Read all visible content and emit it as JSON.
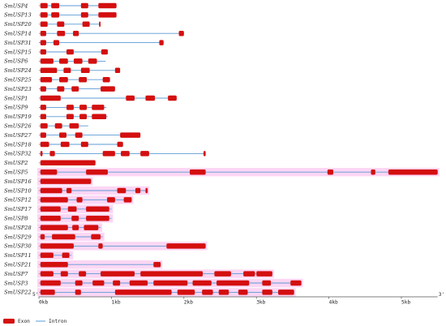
{
  "colors": {
    "exon": "#d40f0f",
    "intron": "#5b9bd5",
    "highlight": "#fcd6f4",
    "axis": "#555555",
    "label": "#222222"
  },
  "axis": {
    "left_label": "5'",
    "right_label": "3'",
    "min_kb": 0,
    "max_kb": 5.5,
    "ticks": [
      {
        "kb": 0,
        "label": "0kb"
      },
      {
        "kb": 1,
        "label": "1kb"
      },
      {
        "kb": 2,
        "label": "2kb"
      },
      {
        "kb": 3,
        "label": "3kb"
      },
      {
        "kb": 4,
        "label": "4kb"
      },
      {
        "kb": 5,
        "label": "5kb"
      }
    ]
  },
  "legend": [
    {
      "kind": "exon",
      "label": "Exon"
    },
    {
      "kind": "intron",
      "label": "Intron"
    }
  ],
  "chart_data": {
    "type": "gene_structure",
    "units": "kb",
    "genes": [
      {
        "name": "SmUSP4",
        "length": 1.07,
        "exons": [
          [
            0.02,
            0.12
          ],
          [
            0.17,
            0.28
          ],
          [
            0.58,
            0.68
          ],
          [
            0.82,
            1.07
          ]
        ]
      },
      {
        "name": "SmUSP13",
        "length": 1.07,
        "exons": [
          [
            0.02,
            0.12
          ],
          [
            0.17,
            0.28
          ],
          [
            0.58,
            0.68
          ],
          [
            0.82,
            1.07
          ]
        ]
      },
      {
        "name": "SmUSP20",
        "length": 0.85,
        "exons": [
          [
            0.02,
            0.12
          ],
          [
            0.25,
            0.35
          ],
          [
            0.6,
            0.7
          ],
          [
            0.83,
            0.85
          ]
        ]
      },
      {
        "name": "SmUSP14",
        "length": 2.0,
        "exons": [
          [
            0.02,
            0.1
          ],
          [
            0.25,
            0.36
          ],
          [
            0.47,
            0.55
          ],
          [
            1.93,
            2.0
          ]
        ]
      },
      {
        "name": "SmUSP31",
        "length": 1.72,
        "exons": [
          [
            0.02,
            0.1
          ],
          [
            0.2,
            0.28
          ],
          [
            1.66,
            1.72
          ]
        ]
      },
      {
        "name": "SmUSP15",
        "length": 0.95,
        "exons": [
          [
            0.02,
            0.1
          ],
          [
            0.38,
            0.48
          ],
          [
            0.86,
            0.95
          ]
        ]
      },
      {
        "name": "SmUSP6",
        "length": 0.92,
        "exons": [
          [
            0.02,
            0.2
          ],
          [
            0.28,
            0.4
          ],
          [
            0.48,
            0.6
          ],
          [
            0.68,
            0.8
          ]
        ]
      },
      {
        "name": "SmUSP24",
        "length": 1.12,
        "exons": [
          [
            0.02,
            0.25
          ],
          [
            0.34,
            0.44
          ],
          [
            0.58,
            0.7
          ],
          [
            1.05,
            1.12
          ]
        ]
      },
      {
        "name": "SmUSP25",
        "length": 0.98,
        "exons": [
          [
            0.02,
            0.18
          ],
          [
            0.28,
            0.4
          ],
          [
            0.55,
            0.66
          ],
          [
            0.88,
            0.98
          ]
        ]
      },
      {
        "name": "SmUSP23",
        "length": 1.05,
        "exons": [
          [
            0.02,
            0.1
          ],
          [
            0.25,
            0.35
          ],
          [
            0.45,
            0.55
          ],
          [
            0.85,
            1.05
          ]
        ]
      },
      {
        "name": "SmUSP1",
        "length": 1.9,
        "exons": [
          [
            0.02,
            0.3
          ],
          [
            1.2,
            1.32
          ],
          [
            1.47,
            1.6
          ],
          [
            1.78,
            1.9
          ]
        ]
      },
      {
        "name": "SmUSP9",
        "length": 0.93,
        "exons": [
          [
            0.02,
            0.1
          ],
          [
            0.38,
            0.48
          ],
          [
            0.56,
            0.66
          ],
          [
            0.73,
            0.9
          ]
        ]
      },
      {
        "name": "SmUSP19",
        "length": 0.95,
        "exons": [
          [
            0.02,
            0.1
          ],
          [
            0.38,
            0.48
          ],
          [
            0.56,
            0.66
          ],
          [
            0.73,
            0.93
          ]
        ]
      },
      {
        "name": "SmUSP26",
        "length": 0.68,
        "exons": [
          [
            0.02,
            0.12
          ],
          [
            0.22,
            0.32
          ],
          [
            0.42,
            0.55
          ]
        ]
      },
      {
        "name": "SmUSP27",
        "length": 1.4,
        "exons": [
          [
            0.02,
            0.1
          ],
          [
            0.28,
            0.38
          ],
          [
            0.5,
            0.6
          ],
          [
            1.12,
            1.4
          ]
        ]
      },
      {
        "name": "SmUSP18",
        "length": 1.16,
        "exons": [
          [
            0.02,
            0.14
          ],
          [
            0.3,
            0.42
          ],
          [
            0.58,
            0.68
          ],
          [
            1.08,
            1.16
          ]
        ]
      },
      {
        "name": "SmUSP32",
        "length": 2.3,
        "exons": [
          [
            0.02,
            0.05
          ],
          [
            0.15,
            0.22
          ],
          [
            0.88,
            1.05
          ],
          [
            1.13,
            1.25
          ],
          [
            1.4,
            1.52
          ],
          [
            2.27,
            2.3
          ]
        ]
      },
      {
        "name": "SmUSP2",
        "length": 0.78,
        "exons": [
          [
            0.02,
            0.78
          ]
        ]
      },
      {
        "name": "SmUSP5",
        "length": 5.5,
        "highlight": true,
        "exons": [
          [
            0.02,
            0.25
          ],
          [
            0.65,
            0.95
          ],
          [
            2.08,
            2.3
          ],
          [
            3.98,
            4.06
          ],
          [
            4.58,
            4.64
          ],
          [
            4.82,
            5.5
          ]
        ]
      },
      {
        "name": "SmUSP16",
        "length": 0.72,
        "highlight": true,
        "exons": [
          [
            0.02,
            0.72
          ]
        ]
      },
      {
        "name": "SmUSP10",
        "length": 1.5,
        "highlight": true,
        "exons": [
          [
            0.02,
            0.32
          ],
          [
            0.38,
            0.45
          ],
          [
            1.08,
            1.2
          ],
          [
            1.33,
            1.4
          ],
          [
            1.47,
            1.5
          ]
        ]
      },
      {
        "name": "SmUSP12",
        "length": 1.28,
        "highlight": true,
        "exons": [
          [
            0.02,
            0.4
          ],
          [
            0.52,
            0.6
          ],
          [
            0.94,
            1.05
          ],
          [
            1.17,
            1.28
          ]
        ]
      },
      {
        "name": "SmUSP17",
        "length": 1.0,
        "highlight": true,
        "exons": [
          [
            0.02,
            0.3
          ],
          [
            0.4,
            0.52
          ],
          [
            0.65,
            0.97
          ]
        ]
      },
      {
        "name": "SmUSP8",
        "length": 1.0,
        "highlight": true,
        "exons": [
          [
            0.02,
            0.3
          ],
          [
            0.45,
            0.55
          ],
          [
            0.65,
            0.97
          ]
        ]
      },
      {
        "name": "SmUSP28",
        "length": 0.85,
        "highlight": true,
        "exons": [
          [
            0.02,
            0.4
          ],
          [
            0.46,
            0.55
          ],
          [
            0.62,
            0.82
          ]
        ]
      },
      {
        "name": "SmUSP29",
        "length": 0.88,
        "highlight": true,
        "exons": [
          [
            0.02,
            0.08
          ],
          [
            0.18,
            0.5
          ],
          [
            0.72,
            0.85
          ]
        ]
      },
      {
        "name": "SmUSP30",
        "length": 2.3,
        "highlight": true,
        "exons": [
          [
            0.02,
            0.48
          ],
          [
            0.82,
            0.88
          ],
          [
            1.76,
            2.3
          ]
        ]
      },
      {
        "name": "SmUSP11",
        "length": 0.45,
        "highlight": true,
        "exons": [
          [
            0.02,
            0.2
          ],
          [
            0.32,
            0.42
          ]
        ]
      },
      {
        "name": "SmUSP21",
        "length": 1.68,
        "highlight": true,
        "exons": [
          [
            0.02,
            0.4
          ],
          [
            1.58,
            1.68
          ]
        ]
      },
      {
        "name": "SmUSP7",
        "length": 3.22,
        "highlight": true,
        "exons": [
          [
            0.02,
            0.2
          ],
          [
            0.3,
            0.4
          ],
          [
            0.55,
            0.65
          ],
          [
            0.85,
            1.32
          ],
          [
            1.4,
            2.26
          ],
          [
            2.42,
            2.65
          ],
          [
            2.82,
            2.98
          ],
          [
            3.0,
            3.22
          ]
        ]
      },
      {
        "name": "SmUSP3",
        "length": 3.62,
        "highlight": true,
        "exons": [
          [
            0.02,
            0.3
          ],
          [
            0.5,
            0.6
          ],
          [
            0.74,
            0.9
          ],
          [
            1.02,
            1.12
          ],
          [
            1.25,
            1.5
          ],
          [
            1.58,
            2.05
          ],
          [
            2.12,
            2.38
          ],
          [
            2.45,
            2.9
          ],
          [
            3.08,
            3.2
          ],
          [
            3.47,
            3.62
          ]
        ]
      },
      {
        "name": "SmUSP22",
        "length": 3.52,
        "highlight": true,
        "exons": [
          [
            0.02,
            0.22
          ],
          [
            0.5,
            0.58
          ],
          [
            1.05,
            1.83
          ],
          [
            1.91,
            2.15
          ],
          [
            2.25,
            2.4
          ],
          [
            2.48,
            2.62
          ],
          [
            2.75,
            2.88
          ],
          [
            3.08,
            3.22
          ],
          [
            3.3,
            3.52
          ]
        ]
      }
    ]
  }
}
